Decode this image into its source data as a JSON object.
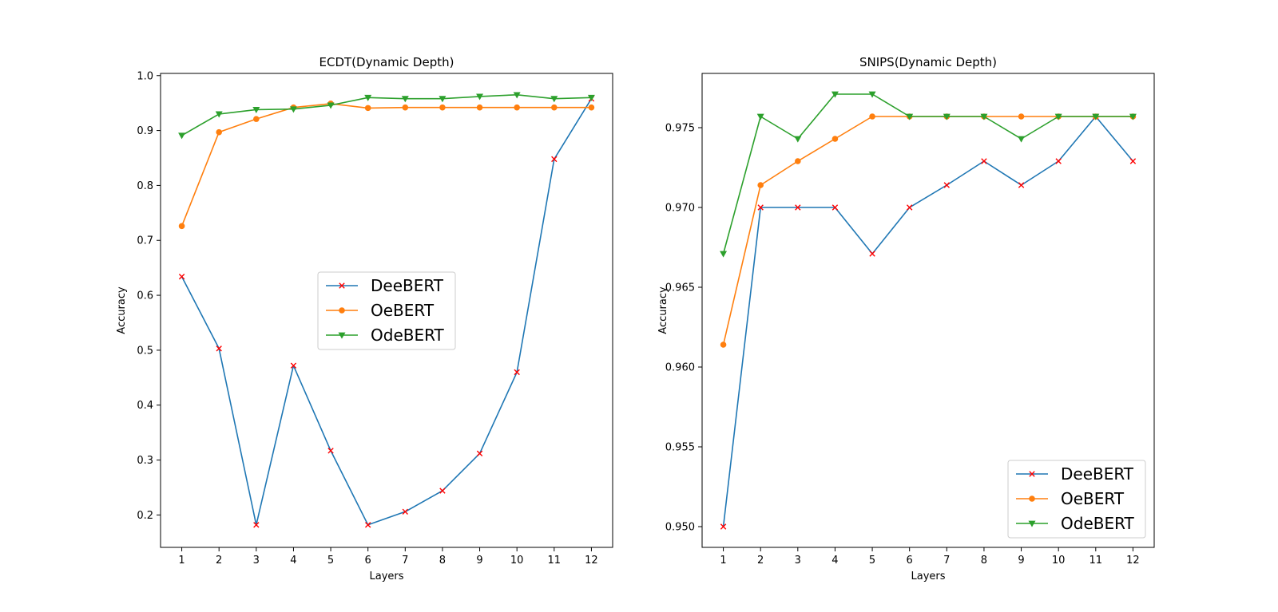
{
  "chart_data": [
    {
      "type": "line",
      "title": "ECDT(Dynamic Depth)",
      "xlabel": "Layers",
      "ylabel": "Accuracy",
      "x": [
        1,
        2,
        3,
        4,
        5,
        6,
        7,
        8,
        9,
        10,
        11,
        12
      ],
      "xlim": [
        0.43,
        12.57
      ],
      "ylim": [
        0.141,
        1.004
      ],
      "xticks": [
        "1",
        "2",
        "3",
        "4",
        "5",
        "6",
        "7",
        "8",
        "9",
        "10",
        "11",
        "12"
      ],
      "yticks": [
        "0.2",
        "0.3",
        "0.4",
        "0.5",
        "0.6",
        "0.7",
        "0.8",
        "0.9",
        "1.0"
      ],
      "ytick_values": [
        0.2,
        0.3,
        0.4,
        0.5,
        0.6,
        0.7,
        0.8,
        0.9,
        1.0
      ],
      "legend_position": "center",
      "grid": false,
      "series": [
        {
          "name": "DeeBERT",
          "color": "#1f77b4",
          "marker": "x",
          "marker_color": "#ff0000",
          "values": [
            0.634,
            0.503,
            0.182,
            0.472,
            0.317,
            0.182,
            0.206,
            0.244,
            0.312,
            0.46,
            0.848,
            0.958
          ]
        },
        {
          "name": "OeBERT",
          "color": "#ff7f0e",
          "marker": "o",
          "marker_color": "#ff7f0e",
          "values": [
            0.726,
            0.897,
            0.921,
            0.942,
            0.949,
            0.941,
            0.942,
            0.942,
            0.942,
            0.942,
            0.942,
            0.942
          ]
        },
        {
          "name": "OdeBERT",
          "color": "#2ca02c",
          "marker": "v",
          "marker_color": "#2ca02c",
          "values": [
            0.891,
            0.93,
            0.938,
            0.939,
            0.946,
            0.96,
            0.958,
            0.958,
            0.962,
            0.965,
            0.958,
            0.96
          ]
        }
      ]
    },
    {
      "type": "line",
      "title": "SNIPS(Dynamic Depth)",
      "xlabel": "Layers",
      "ylabel": "Accuracy",
      "x": [
        1,
        2,
        3,
        4,
        5,
        6,
        7,
        8,
        9,
        10,
        11,
        12
      ],
      "xlim": [
        0.43,
        12.57
      ],
      "ylim": [
        0.9487,
        0.9784
      ],
      "xticks": [
        "1",
        "2",
        "3",
        "4",
        "5",
        "6",
        "7",
        "8",
        "9",
        "10",
        "11",
        "12"
      ],
      "yticks": [
        "0.950",
        "0.955",
        "0.960",
        "0.965",
        "0.970",
        "0.975"
      ],
      "ytick_values": [
        0.95,
        0.955,
        0.96,
        0.965,
        0.97,
        0.975
      ],
      "legend_position": "lower right",
      "grid": false,
      "series": [
        {
          "name": "DeeBERT",
          "color": "#1f77b4",
          "marker": "x",
          "marker_color": "#ff0000",
          "values": [
            0.95,
            0.97,
            0.97,
            0.97,
            0.9671,
            0.97,
            0.9714,
            0.9729,
            0.9714,
            0.9729,
            0.9757,
            0.9729
          ]
        },
        {
          "name": "OeBERT",
          "color": "#ff7f0e",
          "marker": "o",
          "marker_color": "#ff7f0e",
          "values": [
            0.9614,
            0.9714,
            0.9729,
            0.9743,
            0.9757,
            0.9757,
            0.9757,
            0.9757,
            0.9757,
            0.9757,
            0.9757,
            0.9757
          ]
        },
        {
          "name": "OdeBERT",
          "color": "#2ca02c",
          "marker": "v",
          "marker_color": "#2ca02c",
          "values": [
            0.9671,
            0.9757,
            0.9743,
            0.9771,
            0.9771,
            0.9757,
            0.9757,
            0.9757,
            0.9743,
            0.9757,
            0.9757,
            0.9757
          ]
        }
      ]
    }
  ]
}
